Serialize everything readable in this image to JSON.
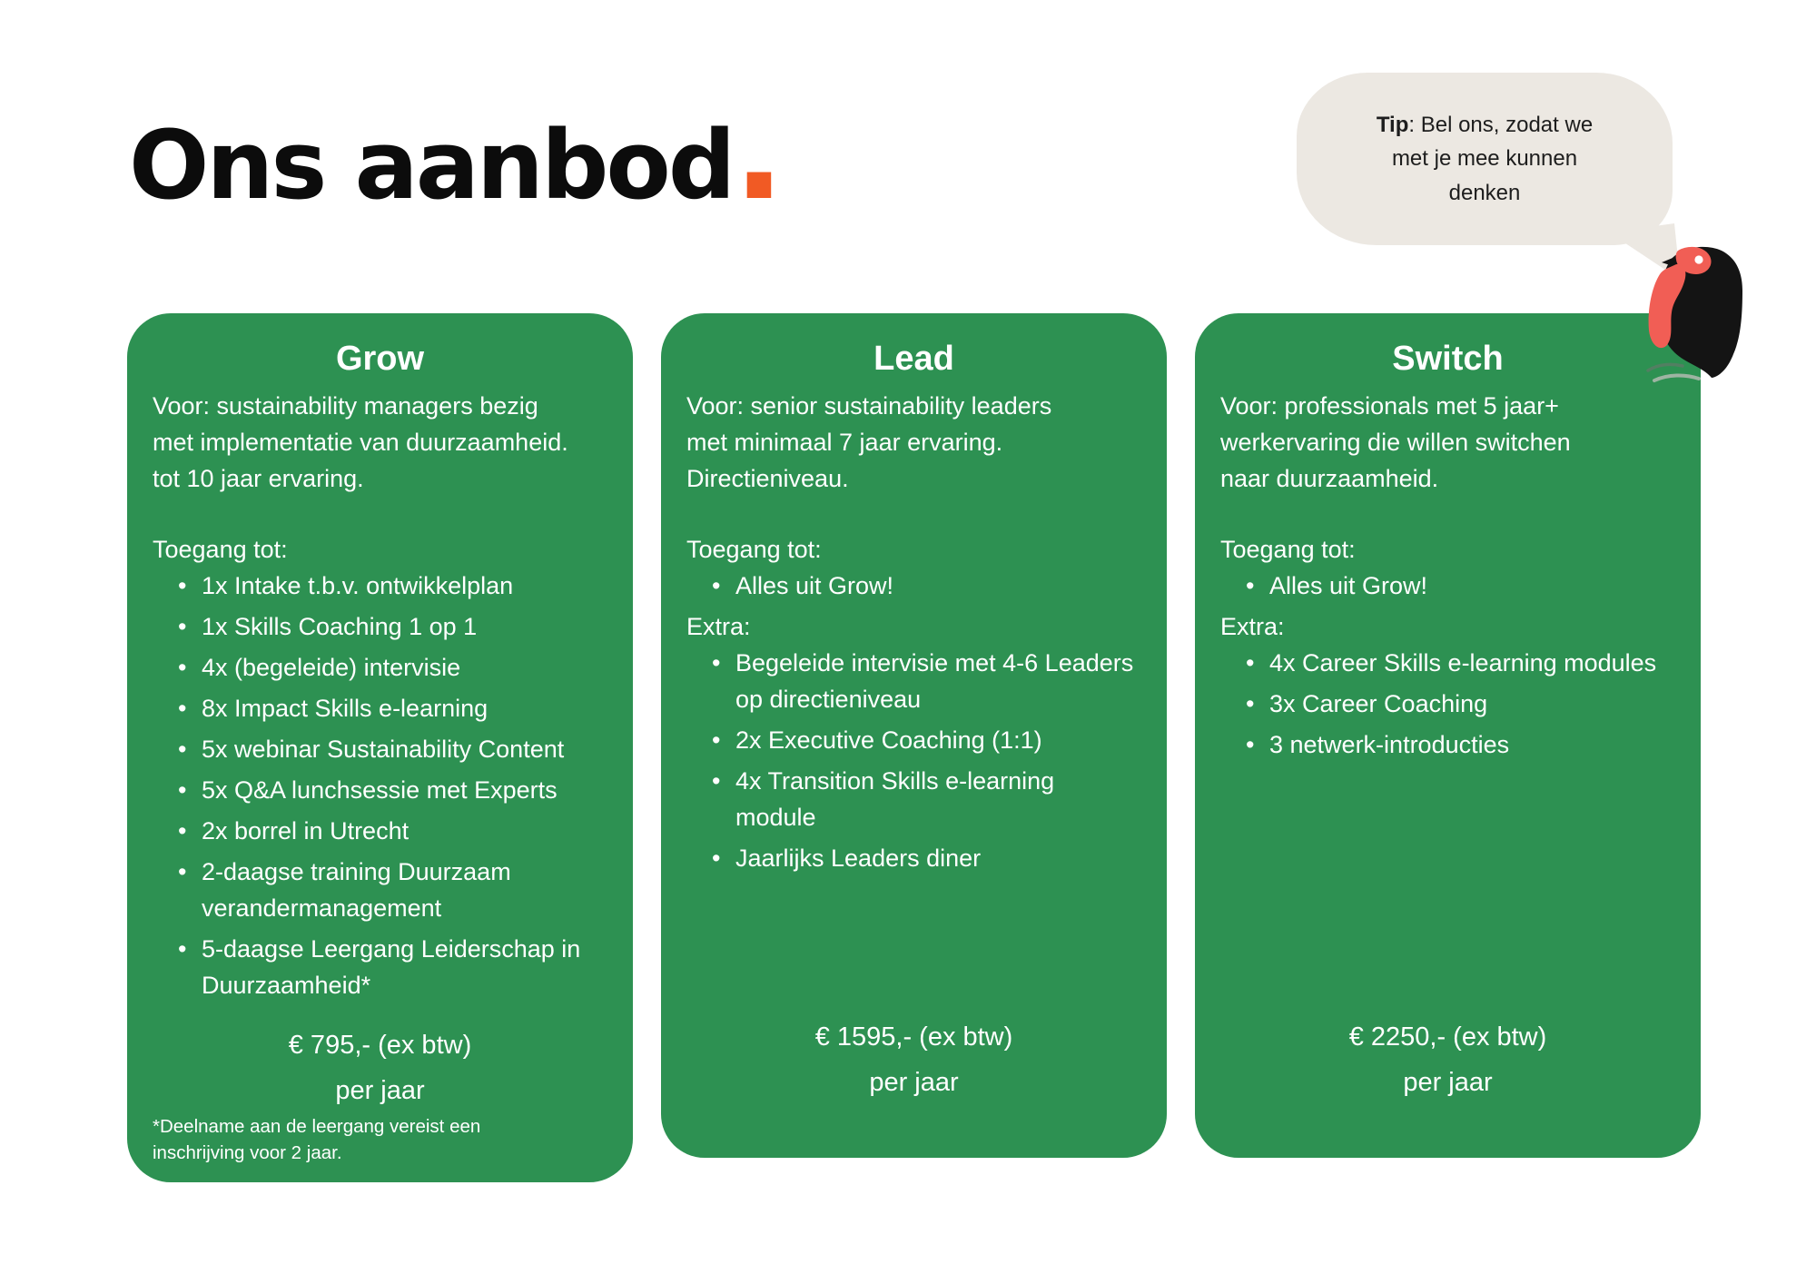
{
  "header": {
    "title": "Ons aanbod",
    "dot": "."
  },
  "tip_bubble": {
    "bold": "Tip",
    "rest": ": Bel ons, zodat we\nmet je mee kunnen\ndenken"
  },
  "colors": {
    "green": "#2D9152",
    "orange": "#F15A24",
    "coral": "#F15E55",
    "bubble": "#ECE8E2",
    "ink": "#0C0C0C"
  },
  "cards": [
    {
      "title": "Grow",
      "intro": "Voor: sustainability managers bezig\nmet implementatie van duurzaamheid.\ntot 10 jaar ervaring.",
      "sections": [
        {
          "label": "Toegang tot:",
          "items": [
            "1x Intake t.b.v. ontwikkelplan",
            "1x Skills Coaching 1 op 1",
            "4x (begeleide) intervisie",
            "8x Impact Skills e-learning",
            "5x webinar Sustainability Content",
            "5x Q&A lunchsessie met Experts",
            "2x borrel in Utrecht",
            "2-daagse training Duurzaam verandermanagement",
            "5-daagse Leergang Leiderschap in Duurzaamheid*"
          ]
        }
      ],
      "price": "€ 795,- (ex btw)",
      "per": "per jaar",
      "footnote": "*Deelname aan de leergang vereist een\ninschrijving voor 2 jaar."
    },
    {
      "title": "Lead",
      "intro": "Voor: senior sustainability leaders\nmet minimaal 7 jaar ervaring.\nDirectieniveau.",
      "sections": [
        {
          "label": "Toegang tot:",
          "items": [
            "Alles uit Grow!"
          ]
        },
        {
          "label": "Extra:",
          "items": [
            "Begeleide intervisie met 4-6 Leaders op directieniveau",
            "2x Executive Coaching (1:1)",
            "4x Transition Skills e-learning module",
            "Jaarlijks Leaders diner"
          ]
        }
      ],
      "price": "€ 1595,- (ex btw)",
      "per": "per jaar",
      "footnote": ""
    },
    {
      "title": "Switch",
      "intro": "Voor: professionals met 5 jaar+\nwerkervaring die willen switchen\nnaar duurzaamheid.",
      "sections": [
        {
          "label": "Toegang tot:",
          "items": [
            "Alles uit Grow!"
          ]
        },
        {
          "label": "Extra:",
          "items": [
            "4x Career Skills e-learning modules",
            "3x Career Coaching",
            "3 netwerk-introducties"
          ]
        }
      ],
      "price": "€ 2250,- (ex btw)",
      "per": "per jaar",
      "footnote": ""
    }
  ]
}
